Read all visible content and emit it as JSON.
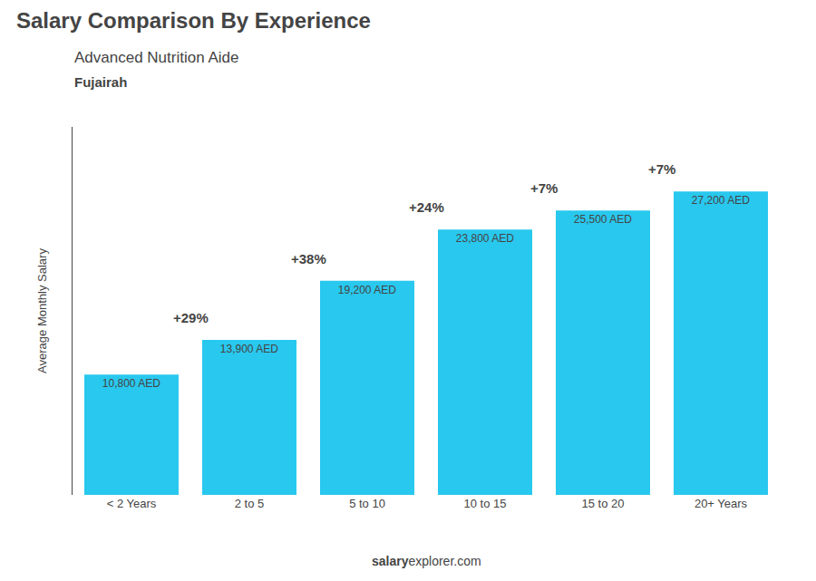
{
  "chart_data": {
    "type": "bar",
    "title": "Salary Comparison By Experience",
    "subtitle": "Advanced Nutrition Aide",
    "city": "Fujairah",
    "ylabel": "Average Monthly Salary",
    "categories": [
      "< 2 Years",
      "2 to 5",
      "5 to 10",
      "10 to 15",
      "15 to 20",
      "20+ Years"
    ],
    "values": [
      10800,
      13900,
      19200,
      23800,
      25500,
      27200
    ],
    "value_labels": [
      "10,800 AED",
      "13,900 AED",
      "19,200 AED",
      "23,800 AED",
      "25,500 AED",
      "27,200 AED"
    ],
    "data_labels": true,
    "pct_labels": [
      "+29%",
      "+38%",
      "+24%",
      "+7%",
      "+7%"
    ],
    "color": "#29C8EE",
    "ylim": [
      0,
      33000
    ],
    "grid": false,
    "tick_labels": "x",
    "footer_bold": "salary",
    "footer_normal": "explorer.com"
  }
}
